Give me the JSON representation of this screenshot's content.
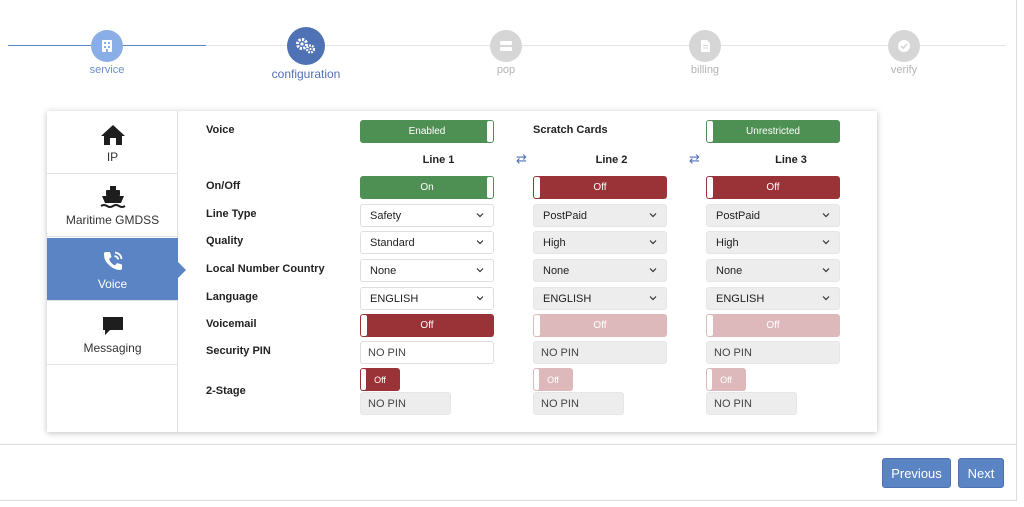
{
  "stepper": {
    "steps": [
      {
        "label": "service",
        "icon": "building-icon",
        "state": "done"
      },
      {
        "label": "configuration",
        "icon": "gears-icon",
        "state": "active"
      },
      {
        "label": "pop",
        "icon": "server-icon",
        "state": "todo"
      },
      {
        "label": "billing",
        "icon": "document-icon",
        "state": "todo"
      },
      {
        "label": "verify",
        "icon": "check-circle-icon",
        "state": "todo"
      }
    ]
  },
  "sidebar": {
    "items": [
      {
        "label": "IP",
        "icon": "home-icon"
      },
      {
        "label": "Maritime GMDSS",
        "icon": "ship-icon"
      },
      {
        "label": "Voice",
        "icon": "phone-icon",
        "active": true
      },
      {
        "label": "Messaging",
        "icon": "chat-bubble-icon"
      }
    ]
  },
  "form": {
    "voice_label": "Voice",
    "voice_toggle": "Enabled",
    "scratch_label": "Scratch Cards",
    "scratch_toggle": "Unrestricted",
    "lines": [
      "Line 1",
      "Line 2",
      "Line 3"
    ],
    "row_labels": {
      "onoff": "On/Off",
      "line_type": "Line Type",
      "quality": "Quality",
      "local_number_country": "Local Number Country",
      "language": "Language",
      "voicemail": "Voicemail",
      "security_pin": "Security PIN",
      "two_stage": "2-Stage"
    },
    "line1": {
      "onoff": "On",
      "line_type": "Safety",
      "quality": "Standard",
      "country": "None",
      "language": "ENGLISH",
      "voicemail": "Off",
      "pin": "NO PIN",
      "two_stage": "Off",
      "two_stage_pin": "NO PIN"
    },
    "line2": {
      "onoff": "Off",
      "line_type": "PostPaid",
      "quality": "High",
      "country": "None",
      "language": "ENGLISH",
      "voicemail": "Off",
      "pin": "NO PIN",
      "two_stage": "Off",
      "two_stage_pin": "NO PIN"
    },
    "line3": {
      "onoff": "Off",
      "line_type": "PostPaid",
      "quality": "High",
      "country": "None",
      "language": "ENGLISH",
      "voicemail": "Off",
      "pin": "NO PIN",
      "two_stage": "Off",
      "two_stage_pin": "NO PIN"
    }
  },
  "footer": {
    "previous_label": "Previous",
    "next_label": "Next"
  },
  "colors": {
    "accent": "#5b84c4",
    "on": "#4e8f53",
    "off": "#993338",
    "off_disabled": "#ddb9bb"
  }
}
